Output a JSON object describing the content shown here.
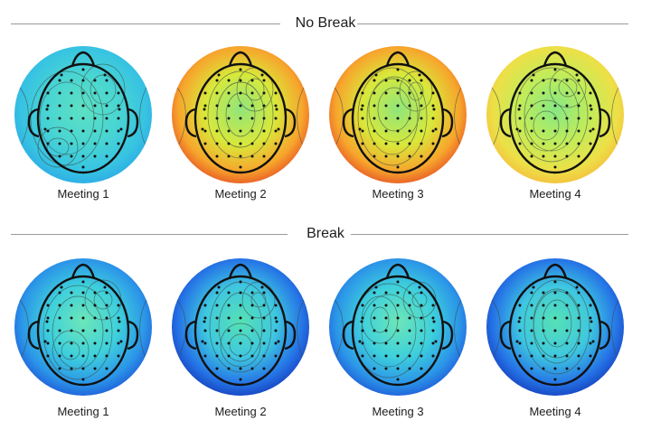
{
  "sections": [
    {
      "title": "No Break",
      "maps": [
        {
          "label": "Meeting 1",
          "palette": "teal",
          "contours": [
            [
              -18,
              4,
              30,
              40
            ],
            [
              22,
              -28,
              14,
              16
            ],
            [
              -28,
              36,
              12,
              10
            ]
          ]
        },
        {
          "label": "Meeting 2",
          "palette": "warm",
          "contours": [
            [
              0,
              0,
              26,
              36
            ],
            [
              0,
              0,
              16,
              24
            ],
            [
              16,
              -28,
              10,
              12
            ]
          ]
        },
        {
          "label": "Meeting 3",
          "palette": "warm",
          "contours": [
            [
              -6,
              2,
              28,
              42
            ],
            [
              -4,
              -6,
              18,
              24
            ],
            [
              20,
              -26,
              8,
              10
            ]
          ]
        },
        {
          "label": "Meeting 4",
          "palette": "warmlight",
          "contours": [
            [
              -4,
              0,
              30,
              40
            ],
            [
              14,
              -30,
              10,
              10
            ],
            [
              -10,
              12,
              14,
              16
            ]
          ]
        }
      ]
    },
    {
      "title": "Break",
      "maps": [
        {
          "label": "Meeting 1",
          "palette": "cool",
          "contours": [
            [
              -6,
              6,
              28,
              40
            ],
            [
              22,
              -30,
              10,
              10
            ],
            [
              -14,
              26,
              10,
              10
            ]
          ]
        },
        {
          "label": "Meeting 2",
          "palette": "deepblue",
          "contours": [
            [
              0,
              0,
              24,
              38
            ],
            [
              0,
              20,
              12,
              12
            ],
            [
              20,
              -30,
              8,
              8
            ]
          ]
        },
        {
          "label": "Meeting 3",
          "palette": "cool",
          "contours": [
            [
              -10,
              4,
              30,
              40
            ],
            [
              24,
              -30,
              8,
              8
            ],
            [
              -20,
              -8,
              10,
              14
            ]
          ]
        },
        {
          "label": "Meeting 4",
          "palette": "deepblue",
          "contours": [
            [
              2,
              0,
              26,
              40
            ],
            [
              2,
              -4,
              16,
              26
            ]
          ]
        }
      ]
    }
  ],
  "palettes": {
    "teal": [
      "#5de0c3",
      "#49d5d2",
      "#37c3e2",
      "#2ba7e6"
    ],
    "warm": [
      "#8fe67c",
      "#d9e83a",
      "#f7a52c",
      "#e44a25"
    ],
    "warmlight": [
      "#86e884",
      "#c3ec58",
      "#ede047",
      "#f5b93c"
    ],
    "cool": [
      "#6de6b8",
      "#3ed0dc",
      "#2b95e8",
      "#1d52d6"
    ],
    "deepblue": [
      "#56e1b5",
      "#3ec7e0",
      "#2574e6",
      "#1438b8"
    ]
  },
  "icons": {
    "head": "head-outline-icon",
    "electrode": "electrode-dot-icon"
  }
}
